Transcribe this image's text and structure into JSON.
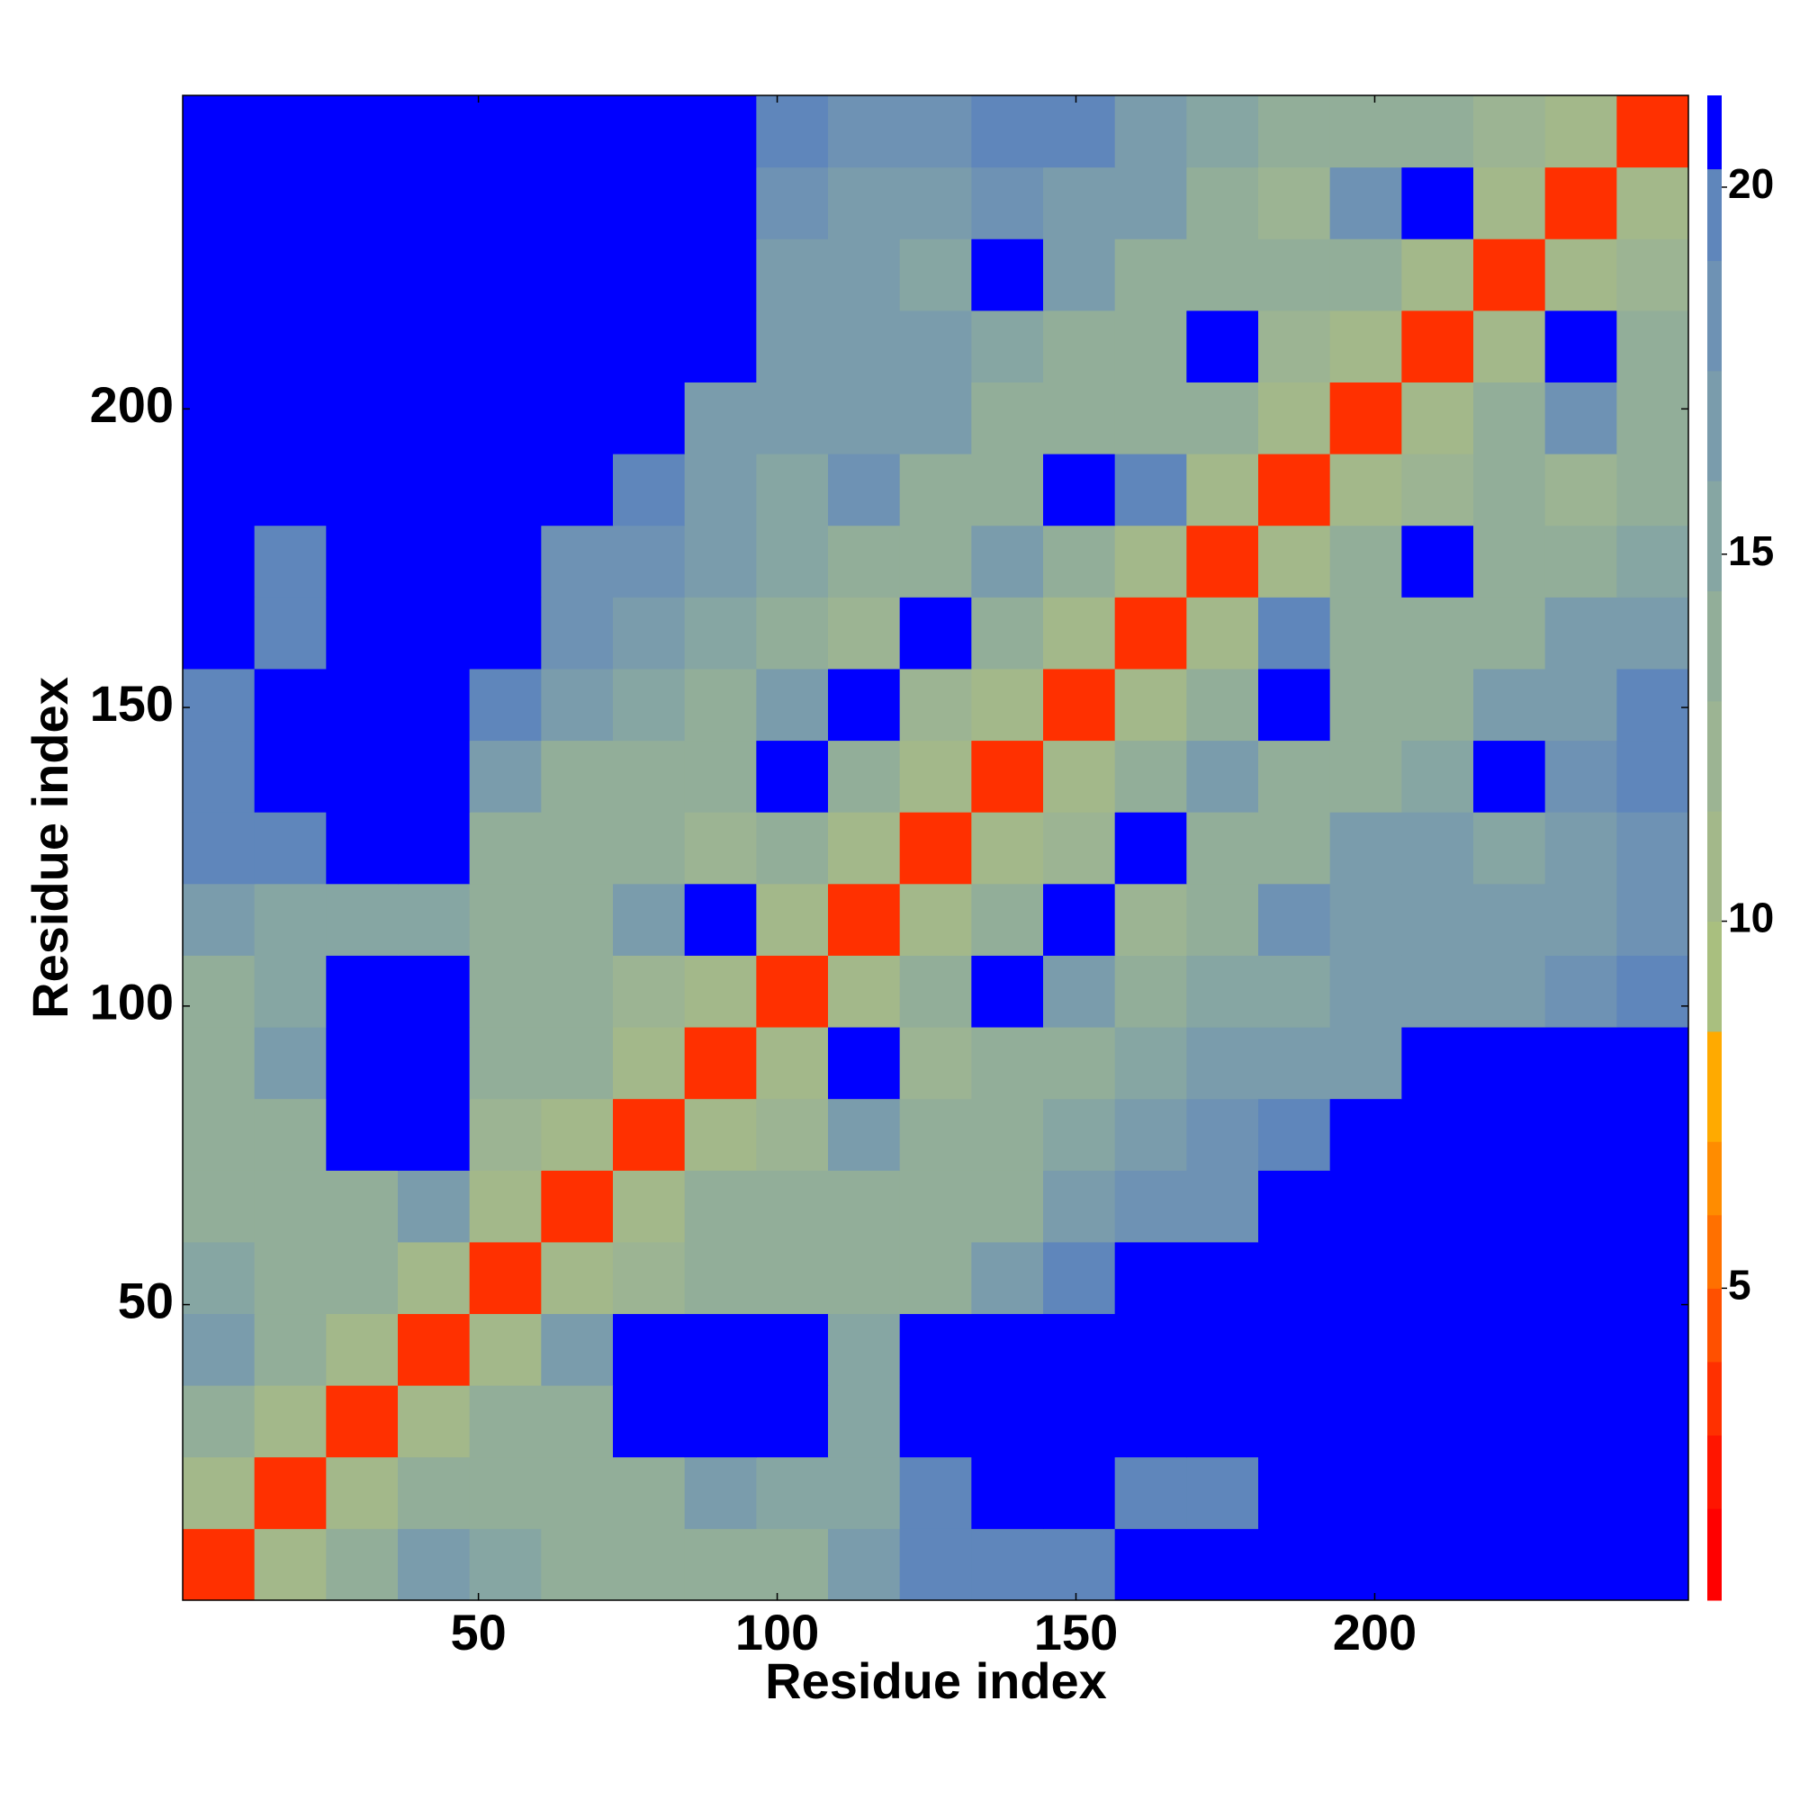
{
  "chart_data": {
    "type": "heatmap",
    "x_label": "Residue index",
    "y_label": "Residue index",
    "xlim": [
      0.5,
      252.5
    ],
    "ylim": [
      0.5,
      252.5
    ],
    "xticks": [
      50,
      100,
      150,
      200
    ],
    "yticks": [
      50,
      100,
      150,
      200
    ],
    "x_edges": [
      0.5,
      12.5,
      24.5,
      36.5,
      48.5,
      60.5,
      72.5,
      84.5,
      96.5,
      108.5,
      120.5,
      132.5,
      144.5,
      156.5,
      168.5,
      180.5,
      192.5,
      204.5,
      216.5,
      228.5,
      240.5,
      252.5
    ],
    "y_edges": [
      0.5,
      12.5,
      24.5,
      36.5,
      48.5,
      60.5,
      72.5,
      84.5,
      96.5,
      108.5,
      120.5,
      132.5,
      144.5,
      156.5,
      168.5,
      180.5,
      192.5,
      204.5,
      216.5,
      228.5,
      240.5,
      252.5
    ],
    "z": [
      [
        3,
        10,
        14,
        17,
        15,
        14,
        14,
        14,
        14,
        17,
        19,
        19,
        20,
        21,
        21,
        21,
        21,
        21,
        21,
        21,
        21
      ],
      [
        10,
        3,
        10,
        14,
        14,
        13,
        14,
        16,
        15,
        15,
        19,
        21,
        21,
        19,
        19,
        21,
        21,
        21,
        21,
        21,
        21
      ],
      [
        14,
        10,
        3,
        11,
        14,
        14,
        21,
        21,
        21,
        15,
        21,
        21,
        21,
        21,
        21,
        21,
        21,
        21,
        21,
        21,
        21
      ],
      [
        17,
        14,
        11,
        3,
        11,
        16,
        21,
        21,
        21,
        15,
        21,
        21,
        21,
        21,
        21,
        21,
        21,
        21,
        21,
        21,
        21
      ],
      [
        15,
        14,
        14,
        11,
        3,
        10,
        12,
        13,
        14,
        14,
        14,
        16,
        19,
        21,
        21,
        21,
        21,
        21,
        21,
        21,
        21
      ],
      [
        14,
        13,
        14,
        16,
        10,
        3,
        10,
        13,
        14,
        13,
        13,
        14,
        17,
        18,
        18,
        21,
        21,
        21,
        21,
        21,
        21
      ],
      [
        14,
        14,
        21,
        21,
        12,
        10,
        3,
        10,
        12,
        16,
        13,
        13,
        15,
        16,
        18,
        19,
        21,
        21,
        21,
        21,
        21
      ],
      [
        14,
        16,
        21,
        21,
        13,
        13,
        10,
        3,
        10,
        21,
        12,
        13,
        13,
        15,
        16,
        17,
        17,
        21,
        21,
        21,
        21
      ],
      [
        14,
        15,
        21,
        21,
        14,
        14,
        12,
        10,
        3,
        10,
        13,
        21,
        16,
        14,
        15,
        15,
        17,
        17,
        17,
        18,
        19
      ],
      [
        17,
        15,
        15,
        15,
        14,
        13,
        16,
        21,
        10,
        3,
        10,
        13,
        21,
        12,
        13,
        18,
        16,
        16,
        16,
        17,
        18
      ],
      [
        19,
        19,
        21,
        21,
        14,
        13,
        13,
        12,
        13,
        10,
        3,
        10,
        12,
        21,
        13,
        14,
        16,
        16,
        15,
        17,
        18
      ],
      [
        19,
        21,
        21,
        21,
        16,
        14,
        13,
        13,
        21,
        13,
        10,
        3,
        10,
        13,
        16,
        13,
        14,
        15,
        21,
        18,
        19
      ],
      [
        20,
        21,
        21,
        21,
        19,
        17,
        15,
        13,
        16,
        21,
        12,
        10,
        3,
        10,
        13,
        21,
        13,
        13,
        17,
        17,
        19
      ],
      [
        21,
        19,
        21,
        21,
        21,
        18,
        16,
        15,
        14,
        12,
        21,
        13,
        10,
        3,
        10,
        19,
        14,
        13,
        14,
        16,
        17
      ],
      [
        21,
        19,
        21,
        21,
        21,
        18,
        18,
        16,
        15,
        13,
        13,
        16,
        13,
        10,
        3,
        10,
        13,
        21,
        13,
        14,
        15
      ],
      [
        21,
        21,
        21,
        21,
        21,
        21,
        19,
        17,
        15,
        18,
        14,
        13,
        21,
        19,
        10,
        3,
        10,
        12,
        13,
        12,
        14
      ],
      [
        21,
        21,
        21,
        21,
        21,
        21,
        21,
        17,
        17,
        16,
        16,
        14,
        13,
        14,
        13,
        10,
        3,
        10,
        13,
        18,
        13
      ],
      [
        21,
        21,
        21,
        21,
        21,
        21,
        21,
        21,
        17,
        16,
        16,
        15,
        13,
        13,
        21,
        12,
        10,
        3,
        10,
        21,
        14
      ],
      [
        21,
        21,
        21,
        21,
        21,
        21,
        21,
        21,
        17,
        16,
        15,
        21,
        17,
        14,
        13,
        13,
        13,
        10,
        3,
        10,
        12
      ],
      [
        21,
        21,
        21,
        21,
        21,
        21,
        21,
        21,
        18,
        17,
        17,
        18,
        17,
        16,
        14,
        12,
        18,
        21,
        10,
        3,
        10
      ],
      [
        21,
        21,
        21,
        21,
        21,
        21,
        21,
        21,
        19,
        18,
        18,
        19,
        19,
        17,
        15,
        14,
        13,
        14,
        12,
        10,
        3
      ]
    ],
    "colorbar": {
      "lim": [
        0.75,
        21.25
      ],
      "ticks": [
        5,
        10,
        15,
        20
      ],
      "levels": [
        0.75,
        2,
        3,
        4,
        5,
        6,
        7,
        8.5,
        10,
        11.5,
        13,
        14.5,
        16,
        17.5,
        19,
        20.25,
        21.25
      ],
      "colors": [
        "#ff0000",
        "#ff1500",
        "#ff3000",
        "#ff5000",
        "#ff7000",
        "#ff8c00",
        "#ffaa00",
        "#a9bf7f",
        "#a3b88a",
        "#9cb493",
        "#92ae99",
        "#86a6a3",
        "#7a9cac",
        "#6e92b4",
        "#5f86bb",
        "#0000ff"
      ]
    }
  }
}
